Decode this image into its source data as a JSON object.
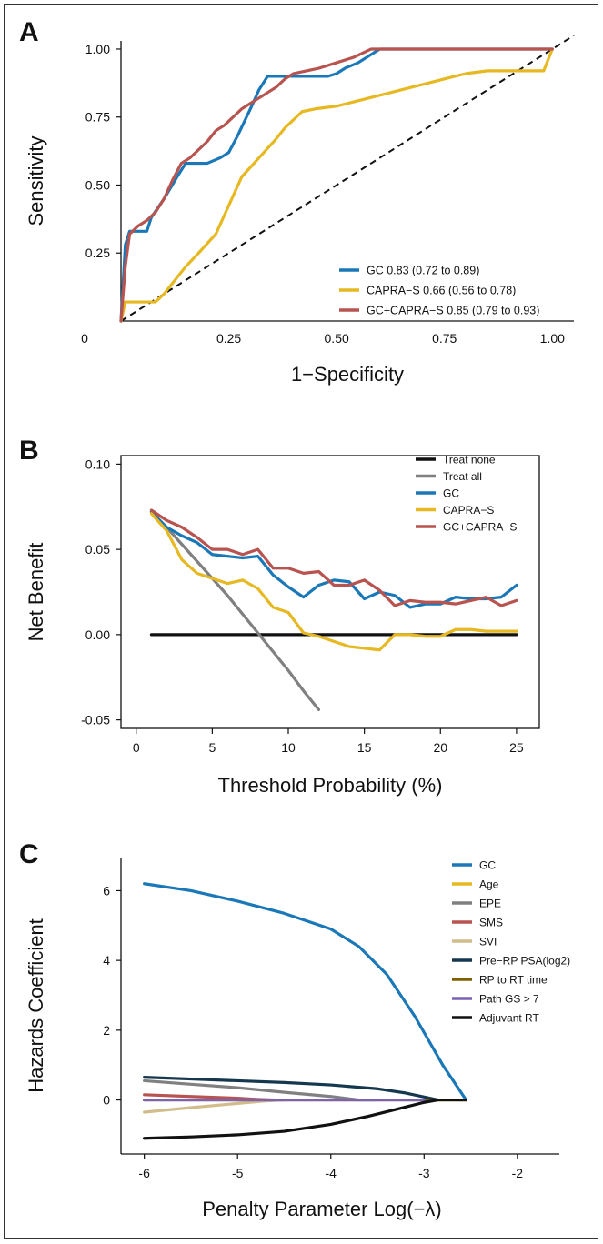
{
  "figure": {
    "panels": [
      {
        "letter": "A"
      },
      {
        "letter": "B"
      },
      {
        "letter": "C"
      }
    ]
  },
  "chart_data": [
    {
      "type": "line",
      "panel": "A",
      "title": "",
      "xlabel": "1−Specificity",
      "ylabel": "Sensitivity",
      "xlim": [
        0,
        1.05
      ],
      "ylim": [
        0,
        1.03
      ],
      "xticks": [
        {
          "value": 0,
          "label": "0"
        },
        {
          "value": 0.25,
          "label": "0.25"
        },
        {
          "value": 0.5,
          "label": "0.50"
        },
        {
          "value": 0.75,
          "label": "0.75"
        },
        {
          "value": 1.0,
          "label": "1.00"
        }
      ],
      "yticks": [
        {
          "value": 0.25,
          "label": "0.25"
        },
        {
          "value": 0.5,
          "label": "0.50"
        },
        {
          "value": 0.75,
          "label": "0.75"
        },
        {
          "value": 1.0,
          "label": "1.00"
        }
      ],
      "grid": false,
      "legend": "bottom-right",
      "reference_line": {
        "style": "dashed",
        "color": "#111111",
        "x": [
          0,
          1.05
        ],
        "y": [
          0,
          1.05
        ]
      },
      "series": [
        {
          "name": "GC 0.83 (0.72 to 0.89)",
          "color": "#1a78b8",
          "x": [
            0,
            0.01,
            0.02,
            0.06,
            0.07,
            0.1,
            0.13,
            0.15,
            0.2,
            0.23,
            0.25,
            0.27,
            0.3,
            0.32,
            0.34,
            0.36,
            0.38,
            0.4,
            0.42,
            0.44,
            0.46,
            0.48,
            0.5,
            0.52,
            0.55,
            0.58,
            0.6,
            0.8,
            1.0
          ],
          "y": [
            0,
            0.28,
            0.33,
            0.33,
            0.38,
            0.45,
            0.53,
            0.58,
            0.58,
            0.6,
            0.62,
            0.68,
            0.78,
            0.85,
            0.9,
            0.9,
            0.9,
            0.9,
            0.9,
            0.9,
            0.9,
            0.9,
            0.91,
            0.93,
            0.95,
            0.98,
            1.0,
            1.0,
            1.0
          ]
        },
        {
          "name": "CAPRA−S 0.66 (0.56 to 0.78)",
          "color": "#e6b822",
          "x": [
            0,
            0.01,
            0.02,
            0.06,
            0.08,
            0.1,
            0.12,
            0.15,
            0.18,
            0.22,
            0.28,
            0.32,
            0.36,
            0.38,
            0.42,
            0.45,
            0.5,
            0.55,
            0.6,
            0.65,
            0.7,
            0.75,
            0.8,
            0.85,
            0.9,
            0.95,
            0.98,
            1.0
          ],
          "y": [
            0,
            0.07,
            0.07,
            0.07,
            0.07,
            0.1,
            0.14,
            0.2,
            0.25,
            0.32,
            0.53,
            0.6,
            0.67,
            0.71,
            0.77,
            0.78,
            0.79,
            0.81,
            0.83,
            0.85,
            0.87,
            0.89,
            0.91,
            0.92,
            0.92,
            0.92,
            0.92,
            1.0
          ]
        },
        {
          "name": "GC+CAPRA−S 0.85 (0.79 to 0.93)",
          "color": "#b85450",
          "x": [
            0,
            0.01,
            0.02,
            0.04,
            0.06,
            0.08,
            0.1,
            0.12,
            0.14,
            0.16,
            0.18,
            0.2,
            0.22,
            0.24,
            0.26,
            0.28,
            0.3,
            0.32,
            0.34,
            0.36,
            0.38,
            0.4,
            0.43,
            0.46,
            0.5,
            0.54,
            0.58,
            0.6,
            0.8,
            1.0
          ],
          "y": [
            0,
            0.2,
            0.32,
            0.35,
            0.37,
            0.4,
            0.45,
            0.52,
            0.58,
            0.6,
            0.63,
            0.66,
            0.7,
            0.72,
            0.75,
            0.78,
            0.8,
            0.82,
            0.84,
            0.86,
            0.89,
            0.91,
            0.92,
            0.93,
            0.95,
            0.97,
            1.0,
            1.0,
            1.0,
            1.0
          ]
        }
      ]
    },
    {
      "type": "line",
      "panel": "B",
      "title": "",
      "xlabel": "Threshold Probability (%)",
      "ylabel": "Net Benefit",
      "xlim": [
        -1,
        26.5
      ],
      "ylim": [
        -0.055,
        0.105
      ],
      "xticks": [
        {
          "value": 0,
          "label": "0"
        },
        {
          "value": 5,
          "label": "5"
        },
        {
          "value": 10,
          "label": "10"
        },
        {
          "value": 15,
          "label": "15"
        },
        {
          "value": 20,
          "label": "20"
        },
        {
          "value": 25,
          "label": "25"
        }
      ],
      "yticks": [
        {
          "value": -0.05,
          "label": "-0.05"
        },
        {
          "value": 0.0,
          "label": "0.00"
        },
        {
          "value": 0.05,
          "label": "0.05"
        },
        {
          "value": 0.1,
          "label": "0.10"
        }
      ],
      "grid": false,
      "legend": "top-right",
      "series": [
        {
          "name": "Treat none",
          "color": "#111111",
          "x": [
            1,
            25
          ],
          "y": [
            0,
            0
          ]
        },
        {
          "name": "Treat all",
          "color": "#808080",
          "x": [
            1,
            2,
            3,
            4,
            5,
            6,
            7,
            8,
            9,
            10,
            11,
            12
          ],
          "y": [
            0.072,
            0.063,
            0.053,
            0.043,
            0.033,
            0.023,
            0.012,
            0.001,
            -0.01,
            -0.021,
            -0.033,
            -0.044
          ]
        },
        {
          "name": "GC",
          "color": "#1a78b8",
          "x": [
            1,
            2,
            3,
            4,
            5,
            6,
            7,
            8,
            9,
            10,
            11,
            12,
            13,
            14,
            15,
            16,
            17,
            18,
            19,
            20,
            21,
            22,
            23,
            24,
            25
          ],
          "y": [
            0.072,
            0.063,
            0.058,
            0.054,
            0.047,
            0.046,
            0.045,
            0.046,
            0.035,
            0.028,
            0.022,
            0.029,
            0.032,
            0.031,
            0.021,
            0.025,
            0.023,
            0.016,
            0.018,
            0.018,
            0.022,
            0.021,
            0.021,
            0.022,
            0.029
          ]
        },
        {
          "name": "CAPRA−S",
          "color": "#e6b822",
          "x": [
            1,
            2,
            3,
            4,
            5,
            6,
            7,
            8,
            9,
            10,
            11,
            12,
            13,
            14,
            15,
            16,
            17,
            18,
            19,
            20,
            21,
            22,
            23,
            24,
            25
          ],
          "y": [
            0.071,
            0.061,
            0.044,
            0.036,
            0.033,
            0.03,
            0.032,
            0.027,
            0.016,
            0.013,
            0.001,
            -0.001,
            -0.004,
            -0.007,
            -0.008,
            -0.009,
            0.0,
            0.0,
            -0.001,
            -0.001,
            0.003,
            0.003,
            0.002,
            0.002,
            0.002
          ]
        },
        {
          "name": "GC+CAPRA−S",
          "color": "#b85450",
          "x": [
            1,
            2,
            3,
            4,
            5,
            6,
            7,
            8,
            9,
            10,
            11,
            12,
            13,
            14,
            15,
            16,
            17,
            18,
            19,
            20,
            21,
            22,
            23,
            24,
            25
          ],
          "y": [
            0.073,
            0.067,
            0.063,
            0.057,
            0.05,
            0.05,
            0.047,
            0.05,
            0.039,
            0.039,
            0.036,
            0.037,
            0.029,
            0.029,
            0.032,
            0.026,
            0.017,
            0.02,
            0.019,
            0.019,
            0.018,
            0.02,
            0.022,
            0.017,
            0.02
          ]
        }
      ]
    },
    {
      "type": "line",
      "panel": "C",
      "title": "",
      "xlabel": "Penalty Parameter Log(−λ)",
      "ylabel": "Hazards Coefficient",
      "xlim": [
        -6.25,
        -1.55
      ],
      "ylim": [
        -1.55,
        6.95
      ],
      "xticks": [
        {
          "value": -6,
          "label": "-6"
        },
        {
          "value": -5,
          "label": "-5"
        },
        {
          "value": -4,
          "label": "-4"
        },
        {
          "value": -3,
          "label": "-3"
        },
        {
          "value": -2,
          "label": "-2"
        }
      ],
      "yticks": [
        {
          "value": 0,
          "label": "0"
        },
        {
          "value": 2,
          "label": "2"
        },
        {
          "value": 4,
          "label": "4"
        },
        {
          "value": 6,
          "label": "6"
        }
      ],
      "grid": false,
      "legend": "top-right",
      "series": [
        {
          "name": "GC",
          "color": "#1a78b8",
          "x": [
            -6,
            -5.5,
            -5,
            -4.5,
            -4,
            -3.7,
            -3.4,
            -3.1,
            -2.8,
            -2.55
          ],
          "y": [
            6.2,
            6.0,
            5.7,
            5.35,
            4.9,
            4.4,
            3.6,
            2.4,
            1.0,
            0.0
          ]
        },
        {
          "name": "Age",
          "color": "#e6b822",
          "x": [
            -6,
            -2.55
          ],
          "y": [
            0,
            0
          ]
        },
        {
          "name": "EPE",
          "color": "#808080",
          "x": [
            -6,
            -5.5,
            -5,
            -4.5,
            -4.0,
            -3.7,
            -3.5
          ],
          "y": [
            0.55,
            0.45,
            0.35,
            0.22,
            0.1,
            0.0,
            0.0
          ]
        },
        {
          "name": "SMS",
          "color": "#b85450",
          "x": [
            -6,
            -5.5,
            -5,
            -4.8,
            -4.6
          ],
          "y": [
            0.15,
            0.1,
            0.05,
            0.02,
            0.0
          ]
        },
        {
          "name": "SVI",
          "color": "#d2bc8c",
          "x": [
            -6,
            -5.5,
            -5,
            -4.7,
            -4.5
          ],
          "y": [
            -0.35,
            -0.22,
            -0.1,
            -0.03,
            0.0
          ]
        },
        {
          "name": "Pre−RP PSA(log2)",
          "color": "#16384f",
          "x": [
            -6,
            -5.5,
            -5,
            -4.5,
            -4,
            -3.5,
            -3.2,
            -2.9,
            -2.85
          ],
          "y": [
            0.65,
            0.6,
            0.55,
            0.5,
            0.43,
            0.32,
            0.2,
            0.03,
            0.0
          ]
        },
        {
          "name": "RP to RT time",
          "color": "#7f6000",
          "x": [
            -6,
            -2.55
          ],
          "y": [
            0,
            0
          ]
        },
        {
          "name": "Path GS > 7",
          "color": "#7b62b4",
          "x": [
            -6,
            -3.0
          ],
          "y": [
            0,
            0
          ]
        },
        {
          "name": "Adjuvant RT",
          "color": "#111111",
          "x": [
            -6,
            -5.5,
            -5,
            -4.5,
            -4,
            -3.6,
            -3.3,
            -3.0,
            -2.85,
            -2.55
          ],
          "y": [
            -1.1,
            -1.06,
            -1.0,
            -0.9,
            -0.7,
            -0.47,
            -0.27,
            -0.07,
            0.0,
            0.0
          ]
        }
      ]
    }
  ]
}
